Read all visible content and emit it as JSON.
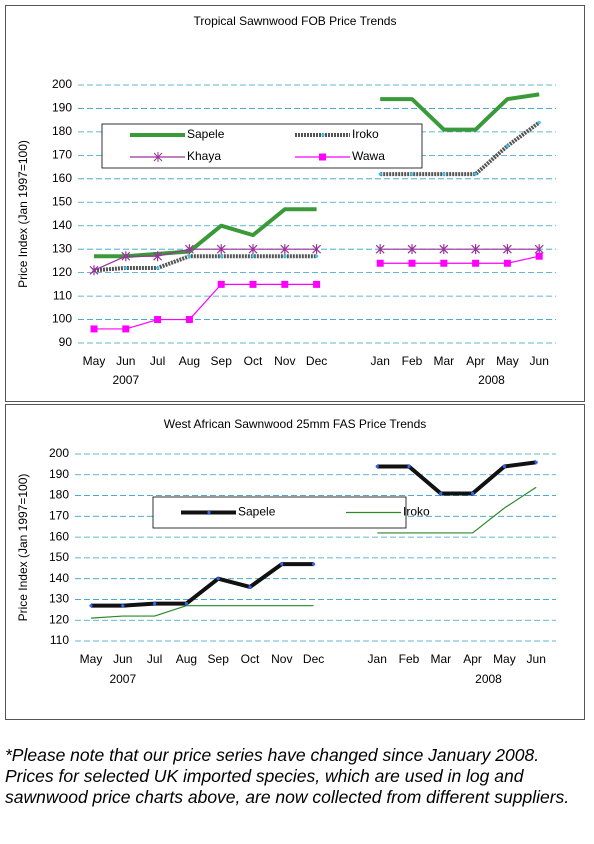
{
  "chart_data": [
    {
      "type": "line",
      "title": "Tropical Sawnwood FOB Price Trends",
      "y_label": "Price Index (Jan 1997=100)",
      "categories": [
        "May",
        "Jun",
        "Jul",
        "Aug",
        "Sep",
        "Oct",
        "Nov",
        "Dec",
        null,
        "Jan",
        "Feb",
        "Mar",
        "Apr",
        "May",
        "Jun"
      ],
      "annotations": [
        "2007",
        "2008"
      ],
      "ylim": [
        90,
        200
      ],
      "yticks": [
        90,
        100,
        110,
        120,
        130,
        140,
        150,
        160,
        170,
        180,
        190,
        200
      ],
      "grid": true,
      "series": [
        {
          "name": "Sapele",
          "color": "#3a9a3a",
          "values": [
            127,
            127,
            128,
            129,
            140,
            136,
            147,
            147,
            null,
            194,
            194,
            181,
            181,
            194,
            196
          ]
        },
        {
          "name": "Iroko",
          "color": "#555555",
          "marker": "dot",
          "marker_color": "#33ccee",
          "values": [
            121,
            122,
            122,
            127,
            127,
            127,
            127,
            127,
            null,
            162,
            162,
            162,
            162,
            174,
            184
          ]
        },
        {
          "name": "Khaya",
          "color": "#993399",
          "marker": "star",
          "values": [
            121,
            127,
            127,
            130,
            130,
            130,
            130,
            130,
            null,
            130,
            130,
            130,
            130,
            130,
            130
          ]
        },
        {
          "name": "Wawa",
          "color": "#ff00ff",
          "marker": "square",
          "values": [
            96,
            96,
            100,
            100,
            115,
            115,
            115,
            115,
            null,
            124,
            124,
            124,
            124,
            124,
            127
          ]
        }
      ]
    },
    {
      "type": "line",
      "title": "West  African Sawnwood 25mm FAS Price Trends",
      "y_label": "Price Index (Jan 1997=100)",
      "categories": [
        "May",
        "Jun",
        "Jul",
        "Aug",
        "Sep",
        "Oct",
        "Nov",
        "Dec",
        null,
        "Jan",
        "Feb",
        "Mar",
        "Apr",
        "May",
        "Jun"
      ],
      "annotations": [
        "2007",
        "2008"
      ],
      "ylim": [
        110,
        200
      ],
      "yticks": [
        110,
        120,
        130,
        140,
        150,
        160,
        170,
        180,
        190,
        200
      ],
      "grid": true,
      "series": [
        {
          "name": "Sapele",
          "color": "#111111",
          "marker": "dot",
          "marker_color": "#3366ff",
          "values": [
            127,
            127,
            128,
            128,
            140,
            136,
            147,
            147,
            null,
            194,
            194,
            181,
            181,
            194,
            196
          ]
        },
        {
          "name": "Iroko",
          "color": "#2a8a2a",
          "values": [
            121,
            122,
            122,
            127,
            127,
            127,
            127,
            127,
            null,
            162,
            162,
            162,
            162,
            174,
            184
          ]
        }
      ]
    }
  ],
  "note": "*Please note that our price series have changed since January 2008. Prices for selected UK imported species, which are used in log and sawnwood price charts above, are now collected from different suppliers."
}
